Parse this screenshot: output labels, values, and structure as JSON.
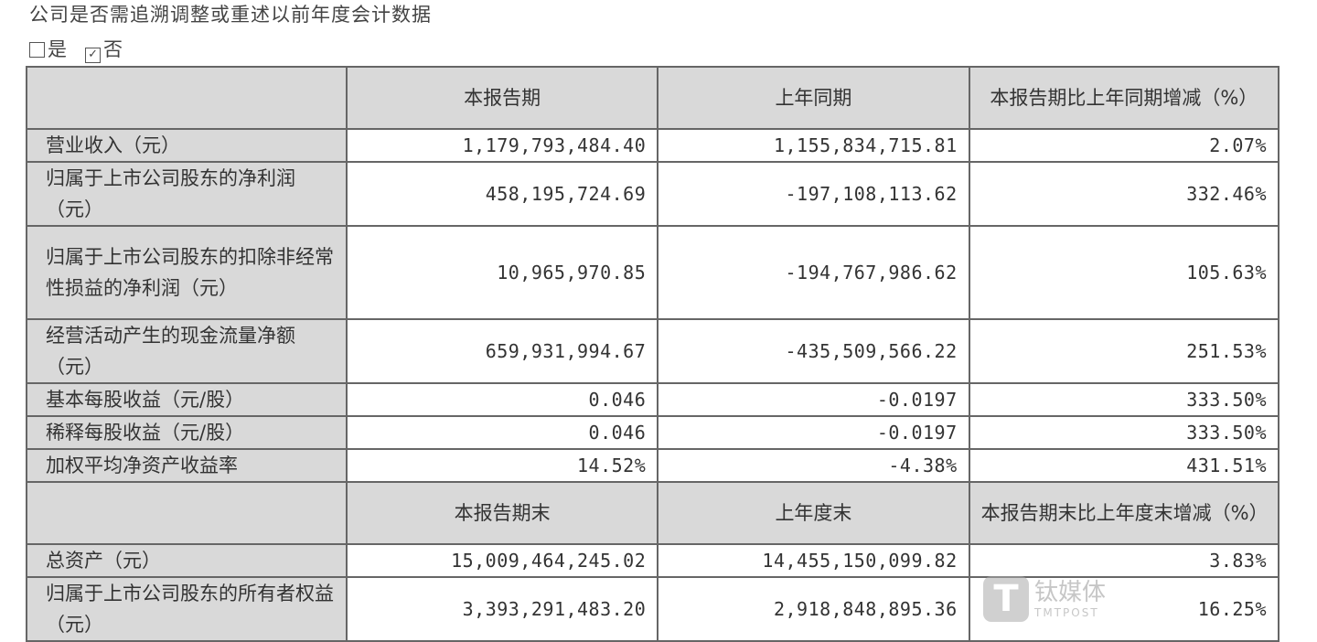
{
  "heading": "公司是否需追溯调整或重述以前年度会计数据",
  "options": [
    {
      "label": "是",
      "checked": false
    },
    {
      "label": "否",
      "checked": true
    }
  ],
  "checkbox_marks": {
    "unchecked": "",
    "checked": "✓"
  },
  "header1": [
    "",
    "本报告期",
    "上年同期",
    "本报告期比上年同期增减（%）"
  ],
  "rows1": [
    {
      "label": "营业收入（元）",
      "current": "1,179,793,484.40",
      "previous": "1,155,834,715.81",
      "change": "2.07%"
    },
    {
      "label": "归属于上市公司股东的净利润（元）",
      "current": "458,195,724.69",
      "previous": "-197,108,113.62",
      "change": "332.46%"
    },
    {
      "label": "归属于上市公司股东的扣除非经常性损益的净利润（元）",
      "current": "10,965,970.85",
      "previous": "-194,767,986.62",
      "change": "105.63%"
    },
    {
      "label": "经营活动产生的现金流量净额（元）",
      "current": "659,931,994.67",
      "previous": "-435,509,566.22",
      "change": "251.53%"
    },
    {
      "label": "基本每股收益（元/股）",
      "current": "0.046",
      "previous": "-0.0197",
      "change": "333.50%"
    },
    {
      "label": "稀释每股收益（元/股）",
      "current": "0.046",
      "previous": "-0.0197",
      "change": "333.50%"
    },
    {
      "label": "加权平均净资产收益率",
      "current": "14.52%",
      "previous": "-4.38%",
      "change": "431.51%"
    }
  ],
  "header2": [
    "",
    "本报告期末",
    "上年度末",
    "本报告期末比上年度末增减（%）"
  ],
  "rows2": [
    {
      "label": "总资产（元）",
      "current": "15,009,464,245.02",
      "previous": "14,455,150,099.82",
      "change": "3.83%"
    },
    {
      "label": "归属于上市公司股东的所有者权益（元）",
      "current": "3,393,291,483.20",
      "previous": "2,918,848,895.36",
      "change": "16.25%"
    }
  ],
  "watermark": {
    "logo_letter": "T",
    "name": "钛媒体",
    "sub": "TMTPOST"
  }
}
